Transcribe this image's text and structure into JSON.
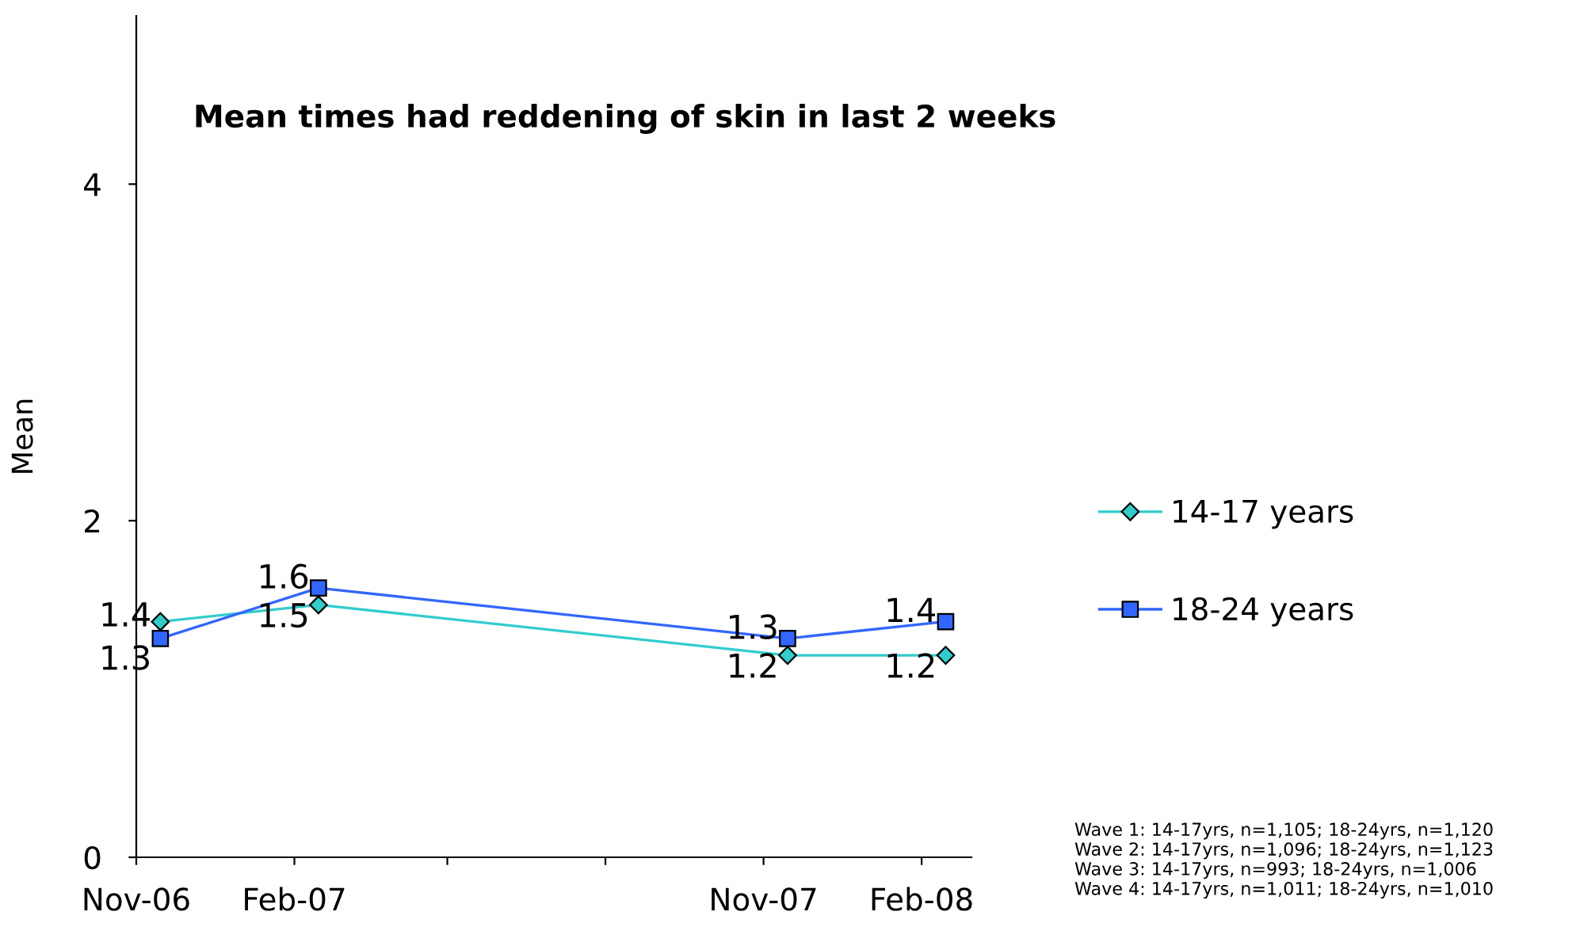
{
  "chart_data": {
    "type": "line",
    "title": "Mean times had reddening of skin in last 2 weeks",
    "ylabel": "Mean",
    "x": [
      "2006-11-15",
      "2007-02-15",
      "2007-11-15",
      "2008-02-15"
    ],
    "series": [
      {
        "name": "14-17 years",
        "color": "#33cccc",
        "values": [
          1.4,
          1.5,
          1.2,
          1.2
        ],
        "marker": "diamond"
      },
      {
        "name": "18-24 years",
        "color": "#3366ff",
        "values": [
          1.3,
          1.6,
          1.3,
          1.4
        ],
        "marker": "square"
      }
    ],
    "xlim": [
      "2006-11-01",
      "2008-03-01"
    ],
    "xticks": [
      {
        "value": "2006-11-01",
        "label": "Nov-06"
      },
      {
        "value": "2007-02-01",
        "label": "Feb-07"
      },
      {
        "value": "2007-05-01",
        "label": null
      },
      {
        "value": "2007-08-01",
        "label": null
      },
      {
        "value": "2007-11-01",
        "label": "Nov-07"
      },
      {
        "value": "2008-02-01",
        "label": "Feb-08"
      }
    ],
    "ylim": [
      0,
      5
    ],
    "yticks": [
      0,
      2,
      4
    ],
    "grid": false,
    "legend": "right",
    "data_labels": true,
    "line_style": "solid",
    "annotations": [
      "Wave 1: 14-17yrs, n=1,105; 18-24yrs, n=1,120",
      "Wave 2: 14-17yrs, n=1,096; 18-24yrs, n=1,123",
      "Wave 3: 14-17yrs, n=993; 18-24yrs, n=1,006",
      "Wave 4: 14-17yrs, n=1,011; 18-24yrs, n=1,010"
    ]
  }
}
